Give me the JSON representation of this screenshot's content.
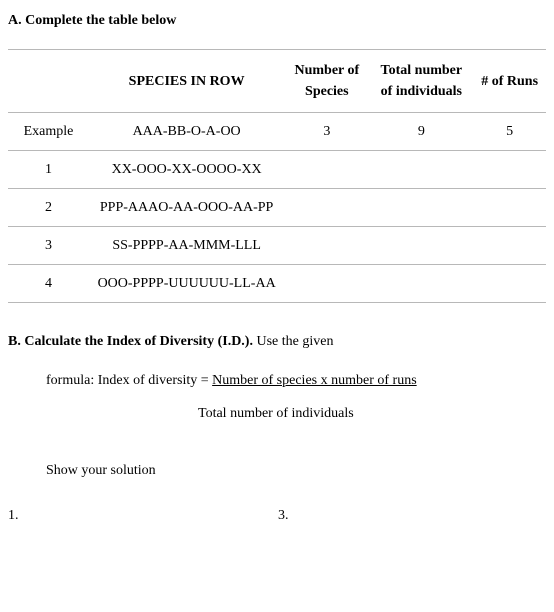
{
  "sectionA": {
    "title": "A. Complete the table below",
    "table": {
      "columns": [
        "",
        "SPECIES IN ROW",
        "Number of Species",
        "Total number of individuals",
        "# of Runs"
      ],
      "rows": [
        {
          "name": "Example",
          "species": "AAA-BB-O-A-OO",
          "numSpecies": "3",
          "totalInd": "9",
          "runs": "5"
        },
        {
          "name": "1",
          "species": "XX-OOO-XX-OOOO-XX",
          "numSpecies": "",
          "totalInd": "",
          "runs": ""
        },
        {
          "name": "2",
          "species": "PPP-AAAO-AA-OOO-AA-PP",
          "numSpecies": "",
          "totalInd": "",
          "runs": ""
        },
        {
          "name": "3",
          "species": "SS-PPPP-AA-MMM-LLL",
          "numSpecies": "",
          "totalInd": "",
          "runs": ""
        },
        {
          "name": "4",
          "species": "OOO-PPPP-UUUUUU-LL-AA",
          "numSpecies": "",
          "totalInd": "",
          "runs": ""
        }
      ]
    }
  },
  "sectionB": {
    "titleBold": "B. Calculate the Index of Diversity (I.D.).",
    "titleAfter": " Use the given",
    "formulaLine1": "formula: Index of diversity = ",
    "numerator": "Number of species x number of runs",
    "denominator": "Total number of individuals",
    "showSolution": "Show your solution",
    "sol1": "1.",
    "sol3": "3."
  }
}
